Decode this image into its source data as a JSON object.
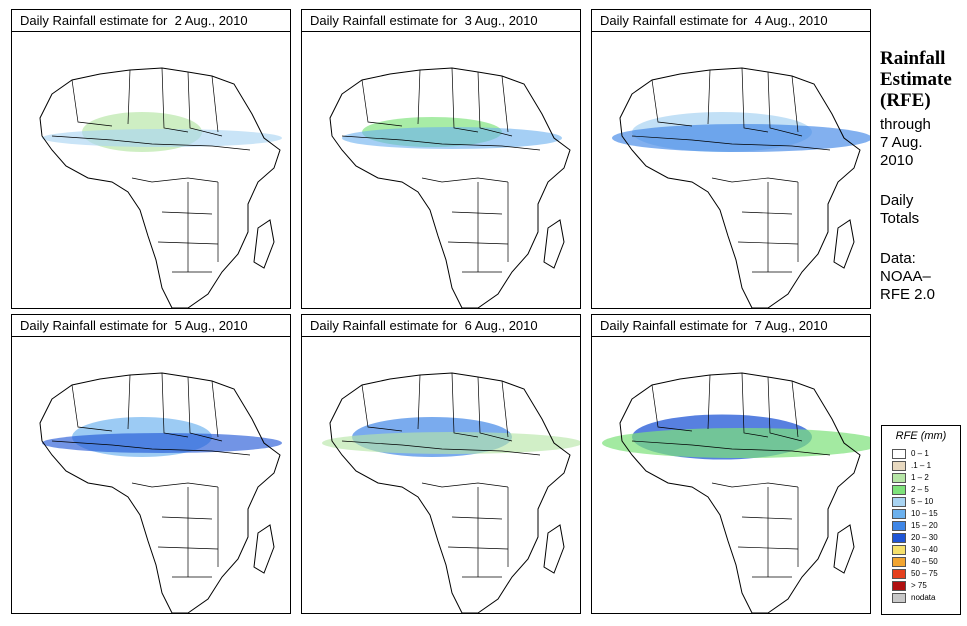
{
  "panels": [
    {
      "title": "Daily Rainfall estimate for  2 Aug., 2010",
      "rain": [
        [
          60,
          40,
          0.12
        ],
        [
          120,
          18,
          0.08
        ]
      ]
    },
    {
      "title": "Daily Rainfall estimate for  3 Aug., 2010",
      "rain": [
        [
          70,
          30,
          0.12
        ],
        [
          110,
          22,
          0.06
        ]
      ]
    },
    {
      "title": "Daily Rainfall estimate for  4 Aug., 2010",
      "rain": [
        [
          90,
          40,
          0.16
        ],
        [
          130,
          28,
          0.1
        ]
      ]
    },
    {
      "title": "Daily Rainfall estimate for  5 Aug., 2010",
      "rain": [
        [
          70,
          40,
          0.12
        ],
        [
          120,
          20,
          0.08
        ]
      ]
    },
    {
      "title": "Daily Rainfall estimate for  6 Aug., 2010",
      "rain": [
        [
          80,
          40,
          0.14
        ],
        [
          130,
          22,
          0.08
        ]
      ]
    },
    {
      "title": "Daily Rainfall estimate for  7 Aug., 2010",
      "rain": [
        [
          90,
          45,
          0.2
        ],
        [
          140,
          30,
          0.16
        ]
      ]
    }
  ],
  "side": {
    "title_line1": "Rainfall",
    "title_line2": "Estimate",
    "title_line3": "(RFE)",
    "through": "through",
    "date_line1": "7 Aug.",
    "date_line2": "2010",
    "daily": "Daily",
    "totals": "Totals",
    "data_label": "Data:",
    "source_line1": "NOAA–",
    "source_line2": "RFE 2.0"
  },
  "legend": {
    "title": "RFE (mm)",
    "items": [
      {
        "label": "0 – 1",
        "color": "#ffffff"
      },
      {
        "label": ".1 – 1",
        "color": "#e8d9c0"
      },
      {
        "label": "1 – 2",
        "color": "#b6e6a6"
      },
      {
        "label": "2 – 5",
        "color": "#7ee27a"
      },
      {
        "label": "5 – 10",
        "color": "#a9d4f2"
      },
      {
        "label": "10 – 15",
        "color": "#6cb1ee"
      },
      {
        "label": "15 – 20",
        "color": "#3f86e6"
      },
      {
        "label": "20 – 30",
        "color": "#1f55d6"
      },
      {
        "label": "30 – 40",
        "color": "#f5e06b"
      },
      {
        "label": "40 – 50",
        "color": "#f2a531"
      },
      {
        "label": "50 – 75",
        "color": "#e5401e"
      },
      {
        "label": "> 75",
        "color": "#b01010"
      },
      {
        "label": "nodata",
        "color": "#c8c8c8"
      }
    ]
  }
}
